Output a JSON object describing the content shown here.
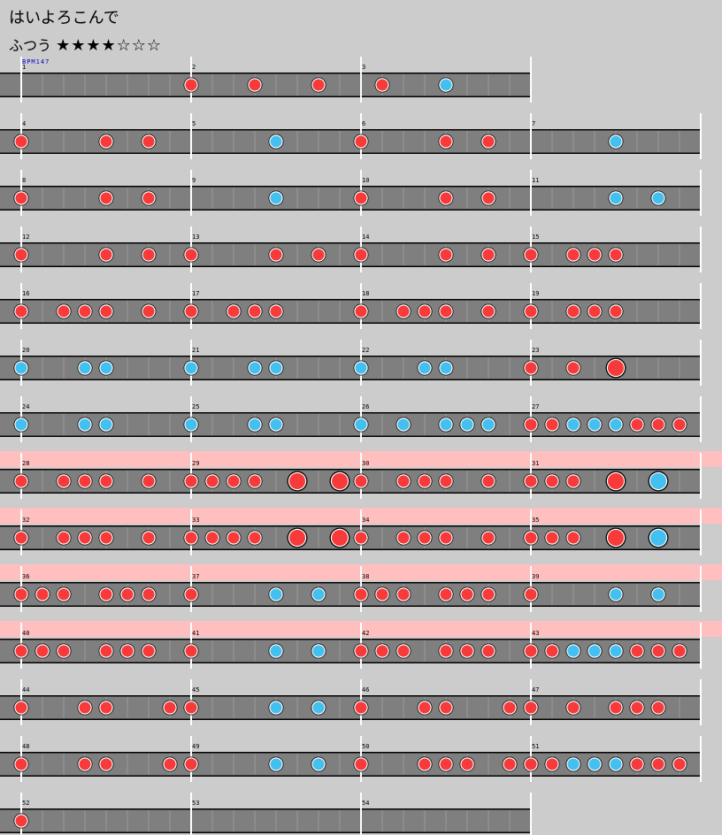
{
  "song": {
    "title": "はいよろこんで"
  },
  "difficulty": {
    "label": "ふつう",
    "stars": "★★★★☆☆☆",
    "level": 4,
    "max": 7
  },
  "bpm": {
    "label": "BPM147"
  },
  "colors": {
    "don": "#f83a3a",
    "ka": "#44c0f0",
    "lane": "#7f7f7f",
    "lane_border": "#000000",
    "barline": "#ffffff",
    "gogo": "#ffbfbf",
    "background": "#cccccc"
  },
  "chart_data": {
    "type": "table",
    "notes_per_measure": 8,
    "legend": {
      "d": "don",
      "k": "ka",
      "D": "big-don",
      "K": "big-ka",
      ".": "rest"
    },
    "rows": [
      {
        "measures": [
          1,
          2,
          3
        ],
        "gogo": false,
        "notes": [
          "........",
          "d..d..d.",
          ".d..k..."
        ]
      },
      {
        "measures": [
          4,
          5,
          6,
          7
        ],
        "gogo": false,
        "notes": [
          "d...d.d.",
          "....k...",
          "d...d.d.",
          "....k..."
        ]
      },
      {
        "measures": [
          8,
          9,
          10,
          11
        ],
        "gogo": false,
        "notes": [
          "d...d.d.",
          "....k...",
          "d...d.d.",
          "....k.k."
        ]
      },
      {
        "measures": [
          12,
          13,
          14,
          15
        ],
        "gogo": false,
        "notes": [
          "d...d.d.",
          "d...d.d.",
          "d...d.d.",
          "d.ddd..."
        ]
      },
      {
        "measures": [
          16,
          17,
          18,
          19
        ],
        "gogo": false,
        "notes": [
          "d.ddd.d.",
          "d.ddd...",
          "d.ddd.d.",
          "d.ddd..."
        ]
      },
      {
        "measures": [
          20,
          21,
          22,
          23
        ],
        "gogo": false,
        "notes": [
          "k..kk...",
          "k..kk...",
          "k..kk...",
          "d.d.D..."
        ]
      },
      {
        "measures": [
          24,
          25,
          26,
          27
        ],
        "gogo": false,
        "notes": [
          "k..kk...",
          "k..kk...",
          "k.k.kkk.",
          "ddkkkddd"
        ]
      },
      {
        "measures": [
          28,
          29,
          30,
          31
        ],
        "gogo": true,
        "notes": [
          "d.ddd.d.",
          "dddd.D.D",
          "d.ddd.d.",
          "ddd.D.K."
        ]
      },
      {
        "measures": [
          32,
          33,
          34,
          35
        ],
        "gogo": true,
        "notes": [
          "d.ddd.d.",
          "dddd.D.D",
          "d.ddd.d.",
          "ddd.D.K."
        ]
      },
      {
        "measures": [
          36,
          37,
          38,
          39
        ],
        "gogo": true,
        "notes": [
          "ddd.ddd.",
          "d...k.k.",
          "ddd.ddd.",
          "d...k.k."
        ]
      },
      {
        "measures": [
          40,
          41,
          42,
          43
        ],
        "gogo": true,
        "notes": [
          "ddd.ddd.",
          "d...k.k.",
          "ddd.ddd.",
          "ddkkkddd"
        ]
      },
      {
        "measures": [
          44,
          45,
          46,
          47
        ],
        "gogo": false,
        "notes": [
          "d..dd..d",
          "d...k.k.",
          "d..dd..d",
          "d.d.ddd."
        ]
      },
      {
        "measures": [
          48,
          49,
          50,
          51
        ],
        "gogo": false,
        "notes": [
          "d..dd..d",
          "d...k.k.",
          "d..ddd.d",
          "ddkkkddd"
        ]
      },
      {
        "measures": [
          52,
          53,
          54
        ],
        "gogo": false,
        "notes": [
          "d.......",
          "........",
          "........"
        ]
      }
    ]
  }
}
